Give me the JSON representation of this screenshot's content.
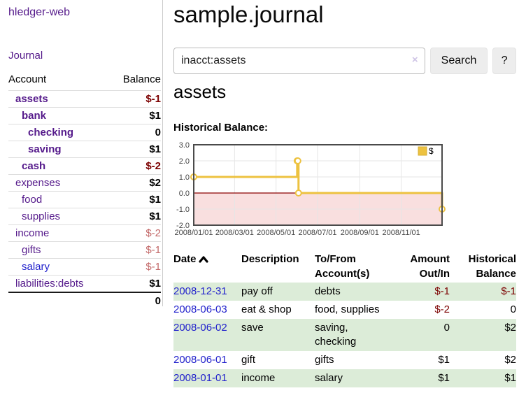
{
  "colors": {
    "link_purple": "#551a8b",
    "link_blue": "#2222cc",
    "negative_strong": "#7c0101",
    "negative_muted": "#c36969",
    "row_stripe_green": "#dcecd8",
    "button_background": "#ededed"
  },
  "sidebar": {
    "app_title": "hledger-web",
    "nav": {
      "journal": "Journal"
    },
    "accounts_table": {
      "headers": {
        "account": "Account",
        "balance": "Balance"
      },
      "rows": [
        {
          "name": "assets",
          "balance": "$-1",
          "indent": 0,
          "emphasis": true,
          "negative": true,
          "blue": false
        },
        {
          "name": "bank",
          "balance": "$1",
          "indent": 1,
          "emphasis": true,
          "negative": false,
          "blue": false
        },
        {
          "name": "checking",
          "balance": "0",
          "indent": 2,
          "emphasis": true,
          "negative": false,
          "blue": false
        },
        {
          "name": "saving",
          "balance": "$1",
          "indent": 2,
          "emphasis": true,
          "negative": false,
          "blue": false
        },
        {
          "name": "cash",
          "balance": "$-2",
          "indent": 1,
          "emphasis": true,
          "negative": true,
          "blue": false
        },
        {
          "name": "expenses",
          "balance": "$2",
          "indent": 0,
          "emphasis": false,
          "negative": false,
          "blue": false
        },
        {
          "name": "food",
          "balance": "$1",
          "indent": 1,
          "emphasis": false,
          "negative": false,
          "blue": false
        },
        {
          "name": "supplies",
          "balance": "$1",
          "indent": 1,
          "emphasis": false,
          "negative": false,
          "blue": false
        },
        {
          "name": "income",
          "balance": "$-2",
          "indent": 0,
          "emphasis": false,
          "negative": true,
          "blue": false
        },
        {
          "name": "gifts",
          "balance": "$-1",
          "indent": 1,
          "emphasis": false,
          "negative": true,
          "blue": false
        },
        {
          "name": "salary",
          "balance": "$-1",
          "indent": 1,
          "emphasis": false,
          "negative": true,
          "blue": true
        },
        {
          "name": "liabilities:debts",
          "balance": "$1",
          "indent": 0,
          "emphasis": false,
          "negative": false,
          "blue": false
        }
      ],
      "total": "0"
    }
  },
  "main": {
    "title": "sample.journal",
    "search": {
      "value": "inacct:assets",
      "clear_icon": "×",
      "search_button": "Search",
      "help_button": "?"
    },
    "account_heading": "assets",
    "chart_label": "Historical Balance:"
  },
  "chart_data": {
    "type": "line",
    "step": true,
    "title": "Historical Balance:",
    "series": [
      {
        "name": "$",
        "color": "#edc240",
        "points": [
          [
            "2008-01-01",
            1
          ],
          [
            "2008-06-01",
            2
          ],
          [
            "2008-06-02",
            2
          ],
          [
            "2008-06-03",
            0
          ],
          [
            "2008-12-31",
            -1
          ]
        ]
      }
    ],
    "xrange": [
      "2008-01-01",
      "2008-12-31"
    ],
    "ylim": [
      -2,
      3
    ],
    "yticks": [
      3.0,
      2.0,
      1.0,
      0.0,
      -1.0,
      -2.0
    ],
    "xticks": [
      "2008/01/01",
      "2008/03/01",
      "2008/05/01",
      "2008/07/01",
      "2008/09/01",
      "2008/11/01"
    ],
    "grid": true,
    "legend_position": "top-right",
    "colors": {
      "grid": "#e6e6e6",
      "frame": "#4a4a4a",
      "zero_line": "#8b0000",
      "negative_region": "#f9dfdf",
      "tick_text": "#444444",
      "legend_box_border": "#d6af35"
    }
  },
  "register": {
    "headers": {
      "date": "Date",
      "description": "Description",
      "account_line1": "To/From",
      "account_line2": "Account(s)",
      "amount_line1": "Amount",
      "amount_line2": "Out/In",
      "balance_line1": "Historical",
      "balance_line2": "Balance"
    },
    "rows": [
      {
        "date": "2008-12-31",
        "description": "pay off",
        "accounts": "debts",
        "amount": "$-1",
        "amount_negative": true,
        "balance": "$-1",
        "balance_negative": true
      },
      {
        "date": "2008-06-03",
        "description": "eat & shop",
        "accounts": "food, supplies",
        "amount": "$-2",
        "amount_negative": true,
        "balance": "0",
        "balance_negative": false
      },
      {
        "date": "2008-06-02",
        "description": "save",
        "accounts": "saving, checking",
        "amount": "0",
        "amount_negative": false,
        "balance": "$2",
        "balance_negative": false
      },
      {
        "date": "2008-06-01",
        "description": "gift",
        "accounts": "gifts",
        "amount": "$1",
        "amount_negative": false,
        "balance": "$2",
        "balance_negative": false
      },
      {
        "date": "2008-01-01",
        "description": "income",
        "accounts": "salary",
        "amount": "$1",
        "amount_negative": false,
        "balance": "$1",
        "balance_negative": false
      }
    ]
  }
}
